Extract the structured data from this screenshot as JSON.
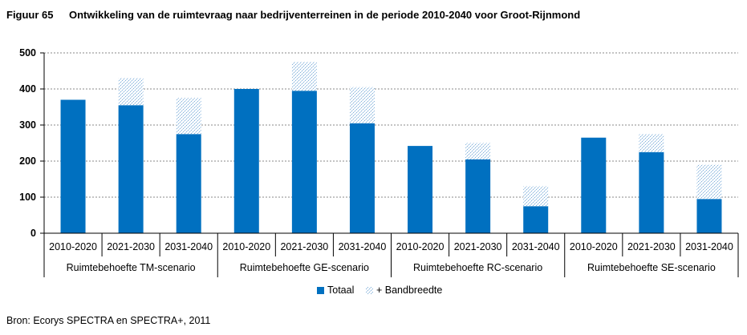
{
  "figure": {
    "number": "Figuur 65",
    "title": "Ontwikkeling van de ruimtevraag naar bedrijventerreinen in de periode 2010-2040 voor Groot-Rijnmond"
  },
  "source": "Bron: Ecorys SPECTRA en SPECTRA+, 2011",
  "colors": {
    "totaal": "#0070C0",
    "bandbreedte": "#9DC3E6",
    "grid": "#888888"
  },
  "chart_data": {
    "type": "bar",
    "stacked": true,
    "ylim": [
      0,
      500
    ],
    "yticks": [
      0,
      100,
      200,
      300,
      400,
      500
    ],
    "grid": true,
    "legend_position": "bottom",
    "groups": [
      "Ruimtebehoefte TM-scenario",
      "Ruimtebehoefte GE-scenario",
      "Ruimtebehoefte RC-scenario",
      "Ruimtebehoefte SE-scenario"
    ],
    "categories": [
      "2010-2020",
      "2021-2030",
      "2031-2040",
      "2010-2020",
      "2021-2030",
      "2031-2040",
      "2010-2020",
      "2021-2030",
      "2031-2040",
      "2010-2020",
      "2021-2030",
      "2031-2040"
    ],
    "series": [
      {
        "name": "Totaal",
        "values": [
          370,
          355,
          275,
          400,
          395,
          305,
          242,
          205,
          75,
          265,
          225,
          95
        ]
      },
      {
        "name": "+ Bandbreedte",
        "values": [
          0,
          75,
          100,
          0,
          80,
          100,
          0,
          45,
          55,
          0,
          50,
          95
        ]
      }
    ]
  }
}
